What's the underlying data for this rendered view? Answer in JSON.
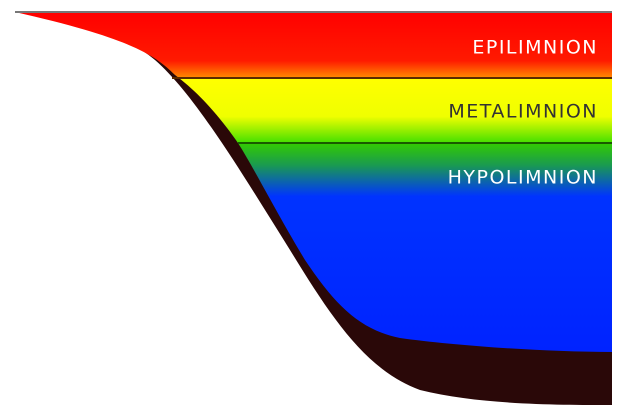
{
  "layers": [
    {
      "label": "EPILIMNION"
    },
    {
      "label": "METALIMNION"
    },
    {
      "label": "HYPOLIMNION"
    }
  ]
}
